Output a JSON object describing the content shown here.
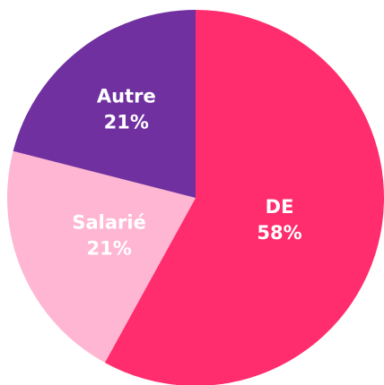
{
  "chart_data": {
    "type": "pie",
    "categories": [
      "DE",
      "Salarié",
      "Autre"
    ],
    "values": [
      58,
      21,
      21
    ],
    "value_labels": [
      "58%",
      "21%",
      "21%"
    ],
    "colors": [
      "#ff2d6e",
      "#ffb6d2",
      "#7030a0"
    ]
  }
}
